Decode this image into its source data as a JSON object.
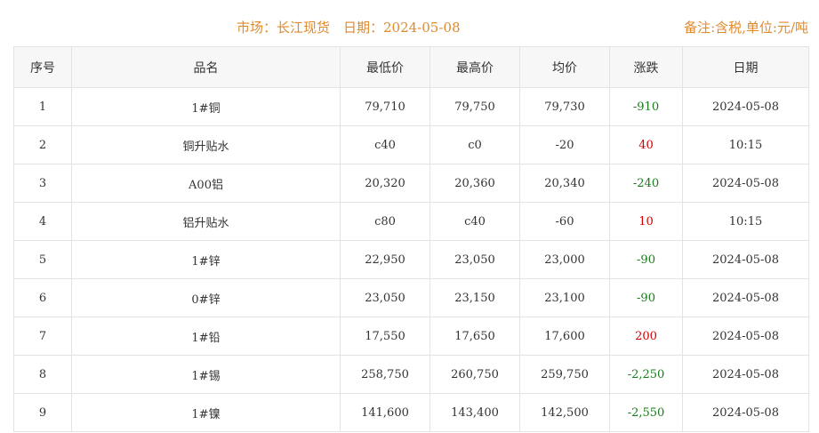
{
  "header": {
    "market": "市场：长江现货　日期：2024-05-08",
    "note": "备注:含税,单位:元/吨"
  },
  "table": {
    "columns": [
      "序号",
      "品名",
      "最低价",
      "最高价",
      "均价",
      "涨跌",
      "日期"
    ],
    "rows": [
      [
        "1",
        "1#铜",
        "79,710",
        "79,750",
        "79,730",
        "-910",
        "2024-05-08",
        "down"
      ],
      [
        "2",
        "铜升贴水",
        "c40",
        "c0",
        "-20",
        "40",
        "10:15",
        "up"
      ],
      [
        "3",
        "A00铝",
        "20,320",
        "20,360",
        "20,340",
        "-240",
        "2024-05-08",
        "down"
      ],
      [
        "4",
        "铝升贴水",
        "c80",
        "c40",
        "-60",
        "10",
        "10:15",
        "up"
      ],
      [
        "5",
        "1#锌",
        "22,950",
        "23,050",
        "23,000",
        "-90",
        "2024-05-08",
        "down"
      ],
      [
        "6",
        "0#锌",
        "23,050",
        "23,150",
        "23,100",
        "-90",
        "2024-05-08",
        "down"
      ],
      [
        "7",
        "1#铅",
        "17,550",
        "17,650",
        "17,600",
        "200",
        "2024-05-08",
        "up"
      ],
      [
        "8",
        "1#锡",
        "258,750",
        "260,750",
        "259,750",
        "-2,250",
        "2024-05-08",
        "down"
      ],
      [
        "9",
        "1#镍",
        "141,600",
        "143,400",
        "142,500",
        "-2,550",
        "2024-05-08",
        "down"
      ]
    ]
  },
  "colors": {
    "up": "#d40000",
    "down": "#1a7a1a",
    "header_text": "#e08a2c"
  }
}
